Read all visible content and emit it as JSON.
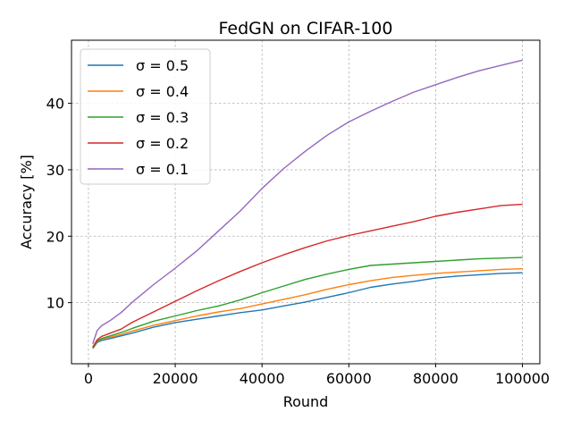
{
  "chart_data": {
    "type": "line",
    "title": "FedGN on CIFAR-100",
    "xlabel": "Round",
    "ylabel": "Accuracy [%]",
    "xlim": [
      -3900,
      104000
    ],
    "ylim": [
      0.8,
      49.5
    ],
    "xticks": [
      0,
      20000,
      40000,
      60000,
      80000,
      100000
    ],
    "xtick_labels": [
      "0",
      "20000",
      "40000",
      "60000",
      "80000",
      "100000"
    ],
    "yticks": [
      10,
      20,
      30,
      40
    ],
    "ytick_labels": [
      "10",
      "20",
      "30",
      "40"
    ],
    "grid": true,
    "legend_position": "top-left",
    "x": [
      1000,
      2000,
      3000,
      5000,
      7500,
      10000,
      15000,
      20000,
      25000,
      30000,
      35000,
      40000,
      45000,
      50000,
      55000,
      60000,
      65000,
      70000,
      75000,
      80000,
      85000,
      90000,
      95000,
      100000
    ],
    "series": [
      {
        "name": "σ = 0.5",
        "color": "#1f77b4",
        "values": [
          3.1,
          4.0,
          4.3,
          4.6,
          5.0,
          5.4,
          6.3,
          7.0,
          7.5,
          8.0,
          8.5,
          8.9,
          9.5,
          10.1,
          10.8,
          11.5,
          12.3,
          12.8,
          13.2,
          13.7,
          14.0,
          14.2,
          14.4,
          14.5
        ]
      },
      {
        "name": "σ = 0.4",
        "color": "#ff7f0e",
        "values": [
          3.2,
          4.1,
          4.5,
          4.8,
          5.2,
          5.7,
          6.6,
          7.3,
          8.0,
          8.6,
          9.1,
          9.8,
          10.5,
          11.2,
          12.0,
          12.7,
          13.3,
          13.8,
          14.1,
          14.4,
          14.6,
          14.8,
          15.0,
          15.1
        ]
      },
      {
        "name": "σ = 0.3",
        "color": "#2ca02c",
        "values": [
          3.2,
          4.2,
          4.6,
          5.0,
          5.5,
          6.1,
          7.2,
          8.0,
          8.8,
          9.5,
          10.4,
          11.5,
          12.5,
          13.5,
          14.3,
          15.0,
          15.6,
          15.8,
          16.0,
          16.2,
          16.4,
          16.6,
          16.7,
          16.8
        ]
      },
      {
        "name": "σ = 0.2",
        "color": "#d62728",
        "values": [
          3.3,
          4.4,
          4.9,
          5.4,
          6.0,
          7.0,
          8.6,
          10.2,
          11.8,
          13.3,
          14.7,
          16.0,
          17.2,
          18.3,
          19.3,
          20.1,
          20.8,
          21.5,
          22.2,
          23.0,
          23.6,
          24.1,
          24.6,
          24.8
        ]
      },
      {
        "name": "σ = 0.1",
        "color": "#9467bd",
        "values": [
          3.8,
          5.8,
          6.5,
          7.3,
          8.5,
          10.0,
          12.7,
          15.2,
          17.8,
          20.8,
          23.8,
          27.2,
          30.2,
          32.8,
          35.2,
          37.2,
          38.8,
          40.3,
          41.7,
          42.8,
          43.9,
          44.9,
          45.7,
          46.5
        ]
      }
    ]
  }
}
